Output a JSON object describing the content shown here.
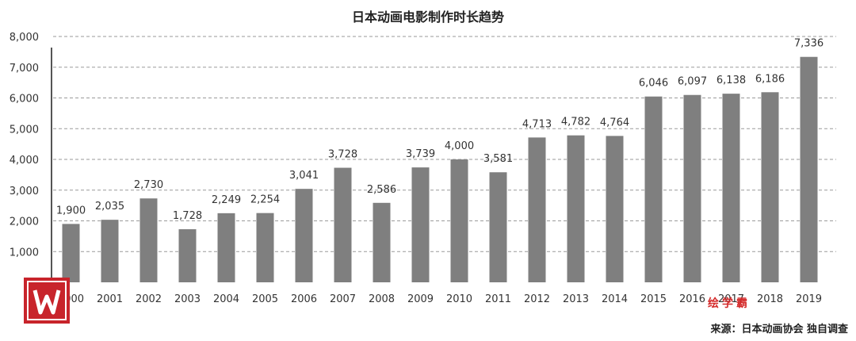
{
  "chart_data": {
    "type": "bar",
    "title": "日本动画电影制作时长趋势",
    "categories": [
      "2000",
      "2001",
      "2002",
      "2003",
      "2004",
      "2005",
      "2006",
      "2007",
      "2008",
      "2009",
      "2010",
      "2011",
      "2012",
      "2013",
      "2014",
      "2015",
      "2016",
      "2017",
      "2018",
      "2019"
    ],
    "values": [
      1900,
      2035,
      2730,
      1728,
      2249,
      2254,
      3041,
      3728,
      2586,
      3739,
      4000,
      3581,
      4713,
      4782,
      4764,
      6046,
      6097,
      6138,
      6186,
      7336
    ],
    "value_labels": [
      "1,900",
      "2,035",
      "2,730",
      "1,728",
      "2,249",
      "2,254",
      "3,041",
      "3,728",
      "2,586",
      "3,739",
      "4,000",
      "3,581",
      "4,713",
      "4,782",
      "4,764",
      "6,046",
      "6,097",
      "6,138",
      "6,186",
      "7,336"
    ],
    "y_ticks": [
      "1,000",
      "2,000",
      "3,000",
      "4,000",
      "5,000",
      "6,000",
      "7,000",
      "8,000"
    ],
    "y_tick_values": [
      1000,
      2000,
      3000,
      4000,
      5000,
      6000,
      7000,
      8000
    ],
    "ylim": [
      0,
      8000
    ],
    "grid": true,
    "bar_color": "#7f7f7f",
    "source": "来源：日本动画协会 独自调查"
  },
  "watermark": {
    "brand": "绘学霸",
    "logo_color": "#c8242b",
    "brand_color": "#d42a2a"
  }
}
